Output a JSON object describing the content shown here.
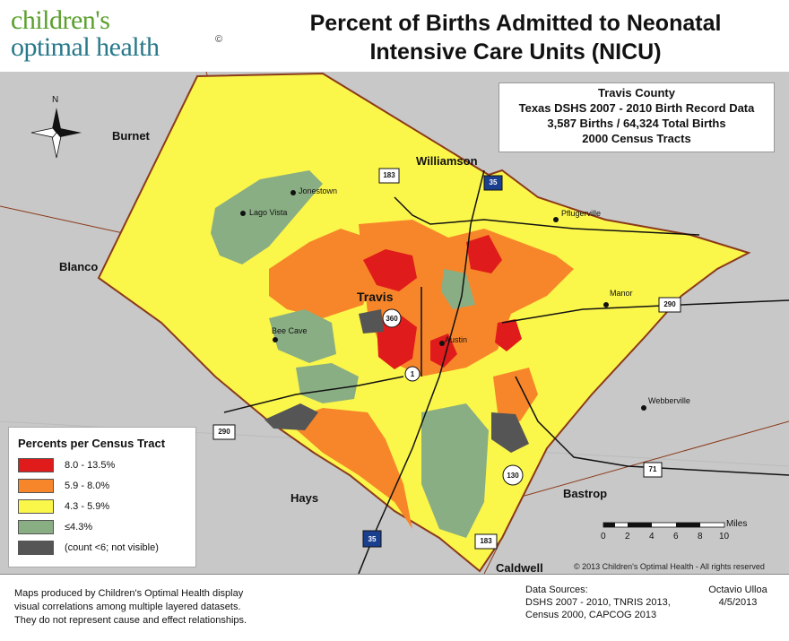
{
  "logo": {
    "line1": "children's",
    "line2": "optimal health",
    "mark": "©"
  },
  "title": {
    "line1": "Percent of Births Admitted to Neonatal",
    "line2": "Intensive Care Units (NICU)"
  },
  "info": {
    "line1": "Travis County",
    "line2": "Texas DSHS 2007 - 2010 Birth Record Data",
    "line3": "3,587 Births / 64,324 Total Births",
    "line4": "2000 Census Tracts"
  },
  "legend": {
    "title": "Percents per Census Tract",
    "items": [
      {
        "label": "8.0 - 13.5%",
        "color": "#e01b1b"
      },
      {
        "label": "5.9 - 8.0%",
        "color": "#f7862a"
      },
      {
        "label": "4.3 - 5.9%",
        "color": "#fbf64a"
      },
      {
        "label": "≤4.3%",
        "color": "#8aae84"
      },
      {
        "label": "(count <6; not visible)",
        "color": "#555555"
      }
    ]
  },
  "places": {
    "burnet": "Burnet",
    "williamson": "Williamson",
    "blanco": "Blanco",
    "hays": "Hays",
    "bastrop": "Bastrop",
    "caldwell": "Caldwell",
    "travis": "Travis"
  },
  "towns": {
    "jonestown": "Jonestown",
    "lago_vista": "Lago Vista",
    "pflugerville": "Pflugerville",
    "manor": "Manor",
    "bee_cave": "Bee Cave",
    "austin": "Austin",
    "webberville": "Webberville"
  },
  "highways": {
    "h183n": "183",
    "i35n": "35",
    "h290e": "290",
    "h360": "360",
    "h1": "1",
    "h290w": "290",
    "h130": "130",
    "h71": "71",
    "i35s": "35",
    "h183s": "183"
  },
  "north": "N",
  "scale": {
    "unit": "Miles",
    "ticks": [
      "0",
      "2",
      "4",
      "6",
      "8",
      "10"
    ]
  },
  "copyright": "© 2013 Children's Optimal Health - All rights reserved",
  "footer": {
    "disclaimer1": "Maps produced by Children's Optimal Health display",
    "disclaimer2": "visual correlations among multiple layered datasets.",
    "disclaimer3": "They do not represent cause and effect relationships.",
    "sources_title": "Data Sources:",
    "sources1": "DSHS 2007 - 2010, TNRIS 2013,",
    "sources2": "Census 2000, CAPCOG 2013",
    "author": "Octavio Ulloa",
    "date": "4/5/2013"
  },
  "colors": {
    "background": "#c8c8c8",
    "red": "#e01b1b",
    "orange": "#f7862a",
    "yellow": "#fbf64a",
    "green": "#8aae84",
    "gray": "#555555",
    "boundary": "#8b3a1a"
  }
}
